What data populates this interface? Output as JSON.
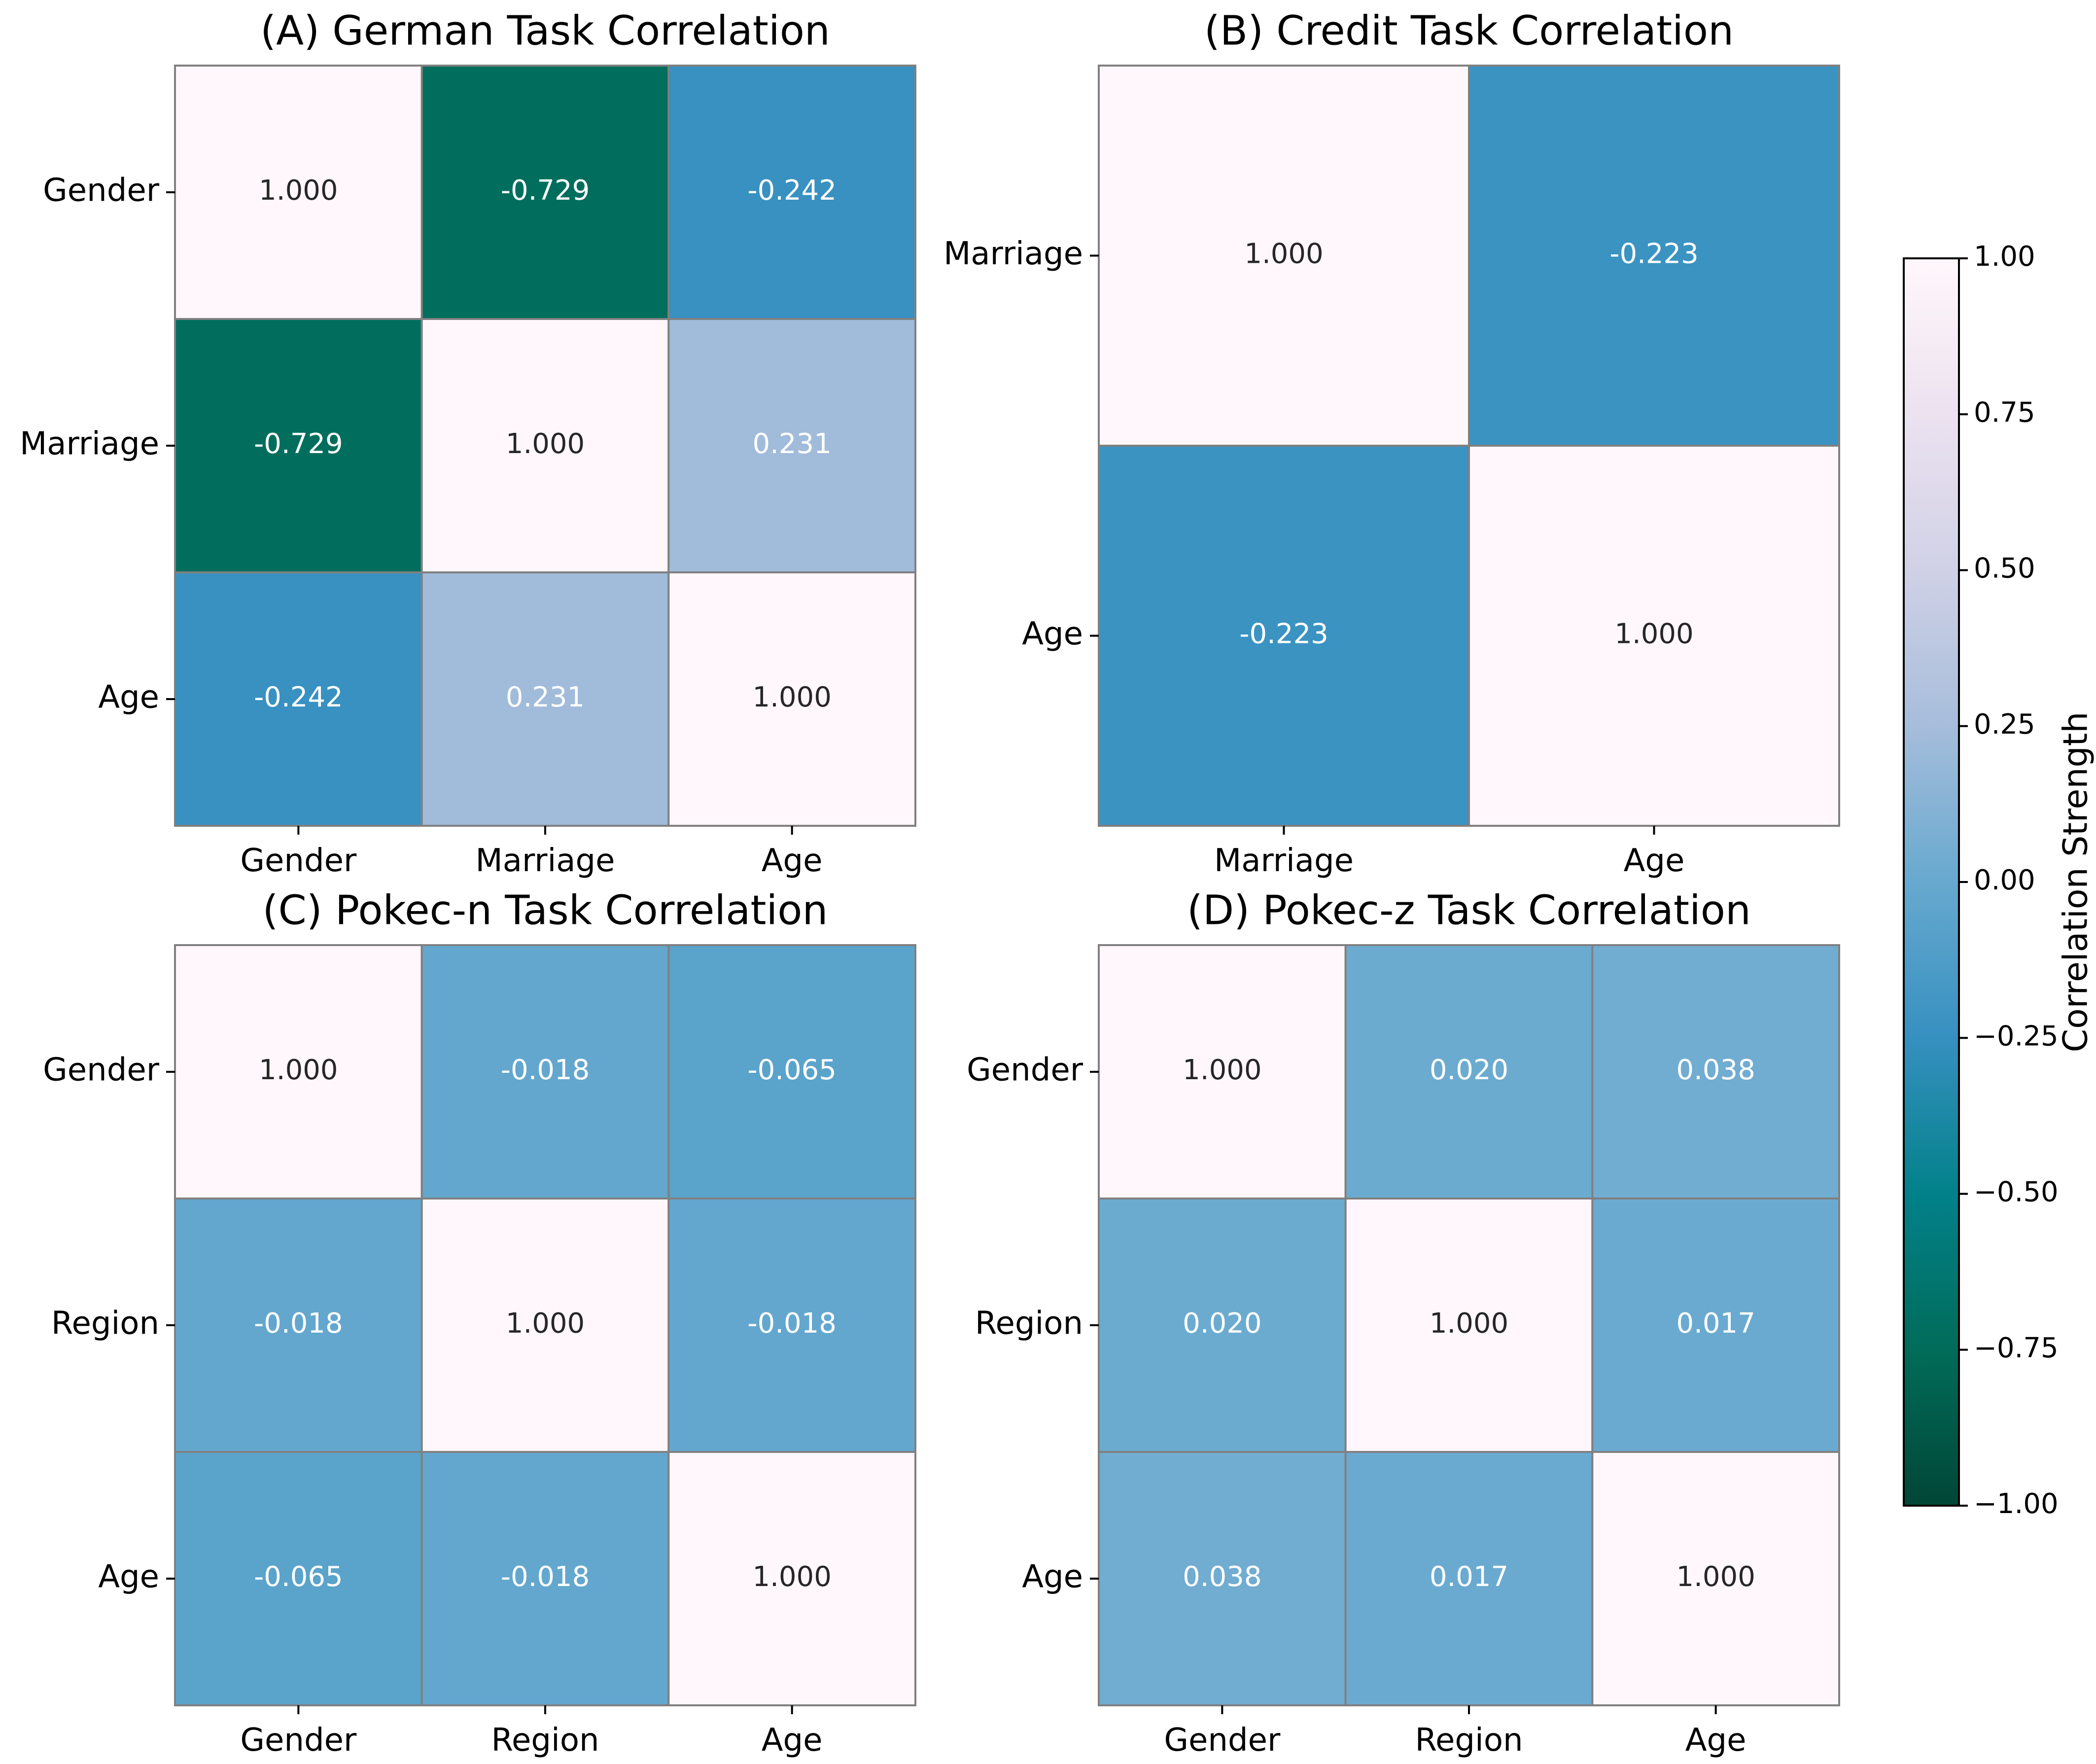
{
  "chart_data": [
    {
      "type": "heatmap",
      "title": "(A) German Task Correlation",
      "rows": [
        "Gender",
        "Marriage",
        "Age"
      ],
      "cols": [
        "Gender",
        "Marriage",
        "Age"
      ],
      "values": [
        [
          1.0,
          -0.729,
          -0.242
        ],
        [
          -0.729,
          1.0,
          0.231
        ],
        [
          -0.242,
          0.231,
          1.0
        ]
      ],
      "labels": [
        [
          "1.000",
          "-0.729",
          "-0.242"
        ],
        [
          "-0.729",
          "1.000",
          "0.231"
        ],
        [
          "-0.242",
          "0.231",
          "1.000"
        ]
      ]
    },
    {
      "type": "heatmap",
      "title": "(B) Credit Task Correlation",
      "rows": [
        "Marriage",
        "Age"
      ],
      "cols": [
        "Marriage",
        "Age"
      ],
      "values": [
        [
          1.0,
          -0.223
        ],
        [
          -0.223,
          1.0
        ]
      ],
      "labels": [
        [
          "1.000",
          "-0.223"
        ],
        [
          "-0.223",
          "1.000"
        ]
      ]
    },
    {
      "type": "heatmap",
      "title": "(C) Pokec-n Task Correlation",
      "rows": [
        "Gender",
        "Region",
        "Age"
      ],
      "cols": [
        "Gender",
        "Region",
        "Age"
      ],
      "values": [
        [
          1.0,
          -0.018,
          -0.065
        ],
        [
          -0.018,
          1.0,
          -0.018
        ],
        [
          -0.065,
          -0.018,
          1.0
        ]
      ],
      "labels": [
        [
          "1.000",
          "-0.018",
          "-0.065"
        ],
        [
          "-0.018",
          "1.000",
          "-0.018"
        ],
        [
          "-0.065",
          "-0.018",
          "1.000"
        ]
      ]
    },
    {
      "type": "heatmap",
      "title": "(D) Pokec-z Task Correlation",
      "rows": [
        "Gender",
        "Region",
        "Age"
      ],
      "cols": [
        "Gender",
        "Region",
        "Age"
      ],
      "values": [
        [
          1.0,
          0.02,
          0.038
        ],
        [
          0.02,
          1.0,
          0.017
        ],
        [
          0.038,
          0.017,
          1.0
        ]
      ],
      "labels": [
        [
          "1.000",
          "0.020",
          "0.038"
        ],
        [
          "0.020",
          "1.000",
          "0.017"
        ],
        [
          "0.038",
          "0.017",
          "1.000"
        ]
      ]
    }
  ],
  "colorbar": {
    "label": "Correlation Strength",
    "range": [
      -1.0,
      1.0
    ],
    "ticks": [
      -1.0,
      -0.75,
      -0.5,
      -0.25,
      0.0,
      0.25,
      0.5,
      0.75,
      1.0
    ],
    "tick_labels": [
      "−1.00",
      "−0.75",
      "−0.50",
      "−0.25",
      "0.00",
      "0.25",
      "0.50",
      "0.75",
      "1.00"
    ],
    "colormap_stops": [
      {
        "v": -1.0,
        "color": "#014636"
      },
      {
        "v": -0.75,
        "color": "#016c59"
      },
      {
        "v": -0.5,
        "color": "#02818a"
      },
      {
        "v": -0.25,
        "color": "#3690c0"
      },
      {
        "v": 0.0,
        "color": "#67a9cf"
      },
      {
        "v": 0.25,
        "color": "#a6bddb"
      },
      {
        "v": 0.5,
        "color": "#d0d1e6"
      },
      {
        "v": 0.75,
        "color": "#ece2f0"
      },
      {
        "v": 1.0,
        "color": "#fff7fb"
      }
    ]
  }
}
